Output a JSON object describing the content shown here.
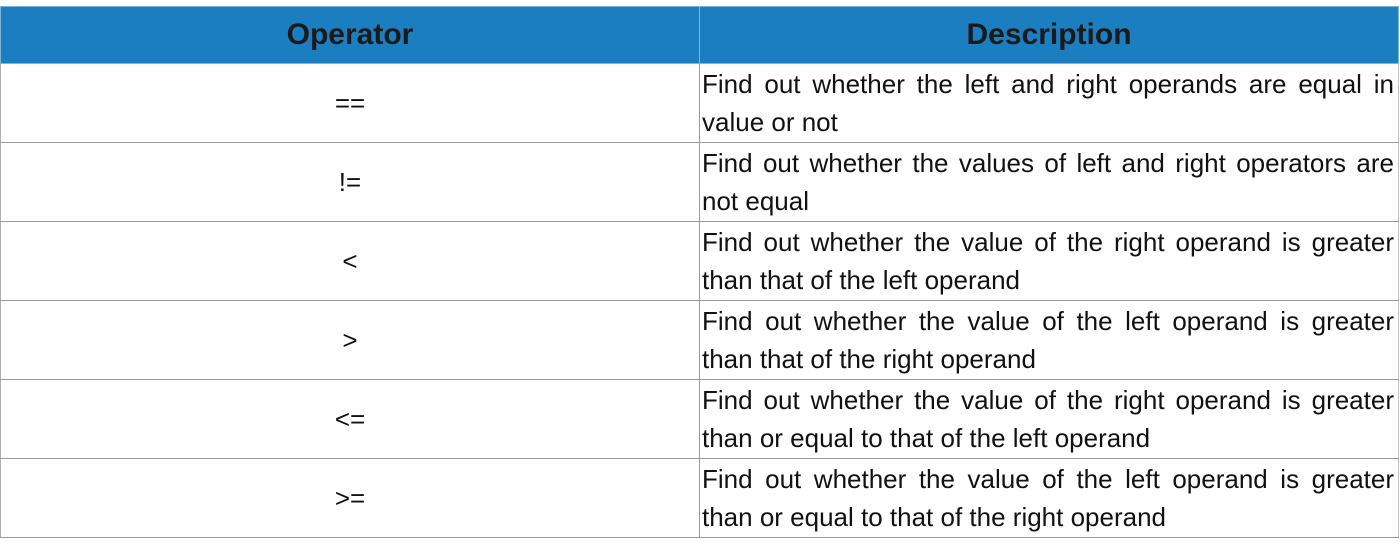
{
  "table": {
    "headers": {
      "operator": "Operator",
      "description": "Description"
    },
    "rows": [
      {
        "operator": "==",
        "description": "Find out whether the left and right operands are equal in value or not"
      },
      {
        "operator": "!=",
        "description": "Find out whether the values of left and right operators are not equal"
      },
      {
        "operator": "<",
        "description": "Find out whether the value of the right operand is greater than that of the left operand"
      },
      {
        "operator": ">",
        "description": "Find out whether the value of the left operand is greater than that of the right operand"
      },
      {
        "operator": "<=",
        "description": "Find out whether the value of the right operand is greater than or equal to that of the left operand"
      },
      {
        "operator": ">=",
        "description": "Find out whether the value of the left operand is greater than or equal to that of the right operand"
      }
    ]
  },
  "colors": {
    "header_background": "#1a7ec0",
    "header_text": "#1a1a1a"
  }
}
